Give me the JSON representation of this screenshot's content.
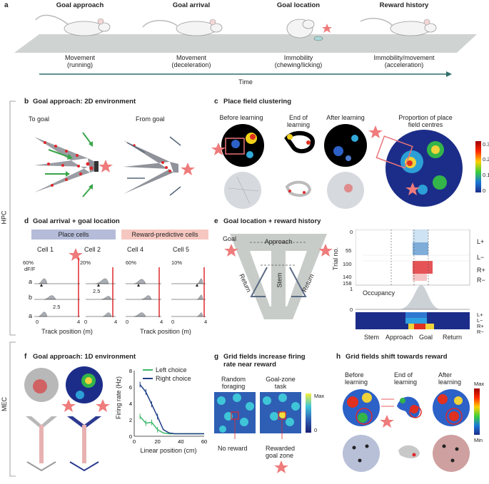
{
  "panel_a": {
    "letter": "a",
    "stages": [
      {
        "title": "Goal approach",
        "caption1": "Movement",
        "caption2": "(running)"
      },
      {
        "title": "Goal arrival",
        "caption1": "Movement",
        "caption2": "(deceleration)"
      },
      {
        "title": "Goal location",
        "caption1": "Immobility",
        "caption2": "(chewing/licking)"
      },
      {
        "title": "Reward history",
        "caption1": "Immobility/movement",
        "caption2": "(acceleration)"
      }
    ],
    "time_label": "Time"
  },
  "side_labels": {
    "hpc": "HPC",
    "mec": "MEC"
  },
  "panel_b": {
    "letter": "b",
    "title": "Goal approach: 2D environment",
    "to_goal": "To goal",
    "from_goal": "From goal"
  },
  "panel_c": {
    "letter": "c",
    "title": "Place field clustering",
    "before": "Before learning",
    "end1": "End of",
    "end2": "learning",
    "after": "After learning",
    "prop1": "Proportion of place",
    "prop2": "field centres",
    "colorbar_ticks": [
      "0.3",
      "0.2",
      "0.1",
      "0"
    ]
  },
  "panel_d": {
    "letter": "d",
    "title": "Goal arrival + goal location",
    "place_cells": "Place cells",
    "reward_cells": "Reward-predictive cells",
    "cells": [
      "Cell 1",
      "Cell 2",
      "Cell 4",
      "Cell 5"
    ],
    "scales": [
      "60%",
      "20%",
      "60%",
      "10%"
    ],
    "dff": "dF/F",
    "rows": [
      "a",
      "b",
      "a"
    ],
    "tick_0": "0",
    "tick_25": "2.5",
    "tick_4": "4",
    "xlabel": "Track position (m)"
  },
  "panel_e": {
    "letter": "e",
    "title": "Goal location + reward history",
    "goal": "Goal",
    "approach": "Approach",
    "stem": "Stem",
    "return": "Return",
    "trial_label": "Trial no.",
    "trial_ticks": [
      "0",
      "55",
      "100",
      "140",
      "158"
    ],
    "conditions": [
      "L+",
      "L−",
      "R+",
      "R−"
    ],
    "occupancy": "Occupancy",
    "occ_ticks": [
      "1",
      "0"
    ],
    "xcats": [
      "Stem",
      "Approach",
      "Goal",
      "Return"
    ]
  },
  "panel_f": {
    "letter": "f",
    "title": "Goal approach: 1D environment",
    "ylabel": "Firing rate (Hz)",
    "xlabel": "Linear position (cm)",
    "legend_left": "Left choice",
    "legend_right": "Right choice",
    "yticks": [
      "8",
      "6",
      "4",
      "2",
      "0"
    ],
    "xticks": [
      "0",
      "20",
      "40",
      "60"
    ],
    "colors": {
      "left": "#3fb86a",
      "right": "#1f3f86"
    }
  },
  "panel_g": {
    "letter": "g",
    "title1": "Grid fields increase firing",
    "title2": "rate near reward",
    "random1": "Random",
    "random2": "foraging",
    "goalzone1": "Goal-zone",
    "goalzone2": "task",
    "no_reward": "No reward",
    "rewarded1": "Rewarded",
    "rewarded2": "goal zone",
    "max": "Max",
    "zero": "0"
  },
  "panel_h": {
    "letter": "h",
    "title": "Grid fields shift towards reward",
    "before1": "Before",
    "before2": "learning",
    "end1": "End of",
    "end2": "learning",
    "after1": "After",
    "after2": "learning",
    "max": "Max",
    "min": "Min"
  },
  "chart_data": {
    "type": "line",
    "title": "",
    "xlabel": "Linear position (cm)",
    "ylabel": "Firing rate (Hz)",
    "xlim": [
      0,
      60
    ],
    "ylim": [
      0,
      8
    ],
    "x": [
      5,
      10,
      15,
      20,
      25,
      30,
      35,
      40,
      45,
      50,
      55,
      60
    ],
    "series": [
      {
        "name": "Left choice",
        "values": [
          2.4,
          1.6,
          1.7,
          0.8,
          0.4,
          0.3,
          0.3,
          0.3,
          0.3,
          0.3,
          0.3,
          0.3
        ]
      },
      {
        "name": "Right choice",
        "values": [
          6.3,
          5.4,
          3.9,
          2.4,
          0.8,
          0.4,
          0.3,
          0.3,
          0.3,
          0.3,
          0.3,
          0.3
        ]
      }
    ]
  }
}
